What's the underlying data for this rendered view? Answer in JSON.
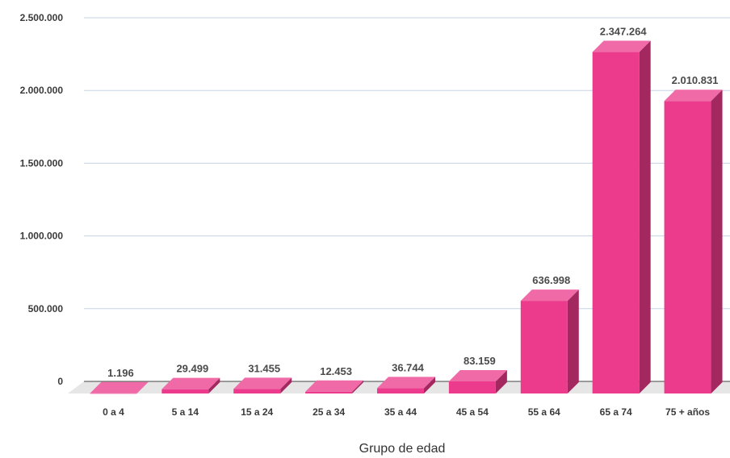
{
  "chart_data": {
    "type": "bar",
    "title": "",
    "xlabel": "Grupo de edad",
    "ylabel": "",
    "categories": [
      "0 a 4",
      "5 a 14",
      "15 a 24",
      "25 a 34",
      "35 a 44",
      "45 a 54",
      "55 a 64",
      "65 a 74",
      "75 + años"
    ],
    "values": [
      1196,
      29499,
      31455,
      12453,
      36744,
      83159,
      636998,
      2347264,
      2010831
    ],
    "value_labels": [
      "1.196",
      "29.499",
      "31.455",
      "12.453",
      "36.744",
      "83.159",
      "636.998",
      "2.347.264",
      "2.010.831"
    ],
    "yticks": [
      0,
      500000,
      1000000,
      1500000,
      2000000,
      2500000
    ],
    "ytick_labels": [
      "0",
      "500.000",
      "1.000.000",
      "1.500.000",
      "2.000.000",
      "2.500.000"
    ],
    "ylim": [
      0,
      2500000
    ],
    "grid": true,
    "style": "3d-column",
    "colors": {
      "front": "#ec3b8c",
      "top": "#f06aa8",
      "side": "#a3285f",
      "floor": "#e6e6e6",
      "grid": "#c5d3e6"
    }
  }
}
